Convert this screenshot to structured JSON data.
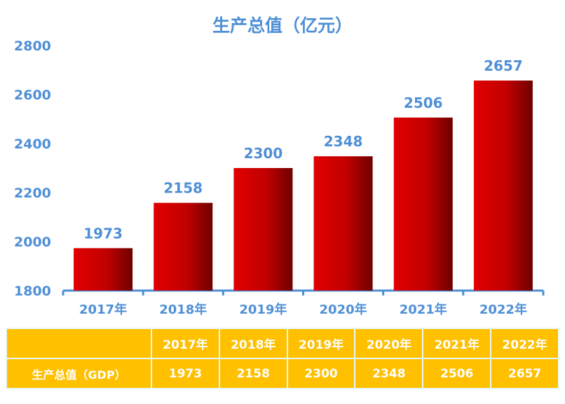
{
  "chart_data": {
    "type": "bar",
    "title": "生产总值（亿元）",
    "categories": [
      "2017年",
      "2018年",
      "2019年",
      "2020年",
      "2021年",
      "2022年"
    ],
    "values": [
      1973,
      2158,
      2300,
      2348,
      2506,
      2657
    ],
    "yticks": [
      "1800",
      "2000",
      "2200",
      "2400",
      "2600",
      "2800"
    ],
    "ylim": [
      1800,
      2800
    ],
    "grid": false,
    "legend": "none"
  },
  "table": {
    "header": [
      "",
      "2017年",
      "2018年",
      "2019年",
      "2020年",
      "2021年",
      "2022年"
    ],
    "row_label": "生产总值（GDP）",
    "row": [
      "1973",
      "2158",
      "2300",
      "2348",
      "2506",
      "2657"
    ]
  },
  "colors": {
    "bar_light": "#e00000",
    "bar_dark": "#7a0000",
    "text_blue": "#4f8fd6",
    "table_fill": "#ffc000"
  }
}
